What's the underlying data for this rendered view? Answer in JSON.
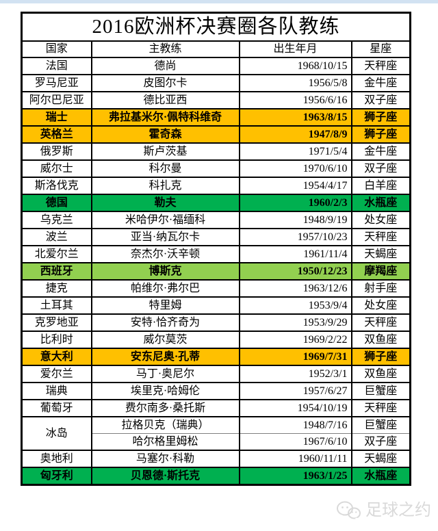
{
  "page": {
    "title": "2016欧洲杯决赛圈各队教练"
  },
  "table": {
    "headers": [
      "国家",
      "主教练",
      "出生年月",
      "星座"
    ],
    "rows": [
      {
        "country": "法国",
        "coach": "德尚",
        "birth": "1968/10/15",
        "zodiac": "天秤座",
        "highlight": null
      },
      {
        "country": "罗马尼亚",
        "coach": "皮图尔卡",
        "birth": "1956/5/8",
        "zodiac": "金牛座",
        "highlight": null
      },
      {
        "country": "阿尔巴尼亚",
        "coach": "德比亚西",
        "birth": "1956/6/16",
        "zodiac": "双子座",
        "highlight": null
      },
      {
        "country": "瑞士",
        "coach": "弗拉基米尔·佩特科维奇",
        "birth": "1963/8/15",
        "zodiac": "狮子座",
        "highlight": "orange"
      },
      {
        "country": "英格兰",
        "coach": "霍奇森",
        "birth": "1947/8/9",
        "zodiac": "狮子座",
        "highlight": "orange"
      },
      {
        "country": "俄罗斯",
        "coach": "斯卢茨基",
        "birth": "1971/5/4",
        "zodiac": "金牛座",
        "highlight": null
      },
      {
        "country": "威尔士",
        "coach": "科尔曼",
        "birth": "1970/6/10",
        "zodiac": "双子座",
        "highlight": null
      },
      {
        "country": "斯洛伐克",
        "coach": "科扎克",
        "birth": "1954/4/17",
        "zodiac": "白羊座",
        "highlight": null
      },
      {
        "country": "德国",
        "coach": "勒夫",
        "birth": "1960/2/3",
        "zodiac": "水瓶座",
        "highlight": "green"
      },
      {
        "country": "乌克兰",
        "coach": "米哈伊尔·福缅科",
        "birth": "1948/9/19",
        "zodiac": "处女座",
        "highlight": null
      },
      {
        "country": "波兰",
        "coach": "亚当·纳瓦尔卡",
        "birth": "1957/10/23",
        "zodiac": "天秤座",
        "highlight": null
      },
      {
        "country": "北爱尔兰",
        "coach": "奈杰尔·沃辛顿",
        "birth": "1961/11/4",
        "zodiac": "天蝎座",
        "highlight": null
      },
      {
        "country": "西班牙",
        "coach": "博斯克",
        "birth": "1950/12/23",
        "zodiac": "摩羯座",
        "highlight": "lightgreen"
      },
      {
        "country": "捷克",
        "coach": "帕维尔·弗尔巴",
        "birth": "1963/12/6",
        "zodiac": "射手座",
        "highlight": null
      },
      {
        "country": "土耳其",
        "coach": "特里姆",
        "birth": "1953/9/4",
        "zodiac": "处女座",
        "highlight": null
      },
      {
        "country": "克罗地亚",
        "coach": "安特·恰齐奇为",
        "birth": "1953/9/29",
        "zodiac": "天秤座",
        "highlight": null
      },
      {
        "country": "比利时",
        "coach": "威尔莫茨",
        "birth": "1969/2/22",
        "zodiac": "双鱼座",
        "highlight": null
      },
      {
        "country": "意大利",
        "coach": "安东尼奥·孔蒂",
        "birth": "1969/7/31",
        "zodiac": "狮子座",
        "highlight": "orange"
      },
      {
        "country": "爱尔兰",
        "coach": "马丁·奥尼尔",
        "birth": "1952/3/1",
        "zodiac": "双鱼座",
        "highlight": null
      },
      {
        "country": "瑞典",
        "coach": "埃里克·哈姆伦",
        "birth": "1957/6/27",
        "zodiac": "巨蟹座",
        "highlight": null
      },
      {
        "country": "葡萄牙",
        "coach": "费尔南多·桑托斯",
        "birth": "1954/10/19",
        "zodiac": "天秤座",
        "highlight": null
      },
      {
        "country": "冰岛",
        "coach": "拉格贝克（瑞典）",
        "birth": "1948/7/16",
        "zodiac": "巨蟹座",
        "highlight": null,
        "rowspan": 2,
        "pre_sub": true
      },
      {
        "country": null,
        "coach": "哈尔格里姆松",
        "birth": "1967/6/10",
        "zodiac": "双子座",
        "highlight": null,
        "sub": true
      },
      {
        "country": "奥地利",
        "coach": "马塞尔·科勒",
        "birth": "1960/11/11",
        "zodiac": "天蝎座",
        "highlight": null
      },
      {
        "country": "匈牙利",
        "coach": "贝恩德·斯托克",
        "birth": "1963/1/25",
        "zodiac": "水瓶座",
        "highlight": "green"
      }
    ]
  },
  "footer": {
    "brand": "足球之约",
    "icon": "wechat-icon"
  },
  "colors": {
    "highlight-orange": "#FFC000",
    "highlight-green": "#00B050",
    "highlight-lightgreen": "#92D050",
    "top-strip": "#d2e2f2",
    "watermark": "#d9d9d9"
  }
}
